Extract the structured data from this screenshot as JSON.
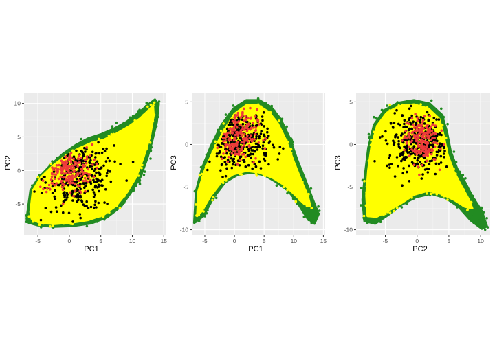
{
  "colors": {
    "panel_background": "#ebebeb",
    "grid": "#ffffff",
    "group_green": "#228b22",
    "group_yellow": "#ffff00",
    "group_black": "#000000",
    "group_red": "#ee3b3b"
  },
  "chart_data": [
    {
      "type": "scatter",
      "title": "",
      "xlabel": "PC1",
      "ylabel": "PC2",
      "xlim": [
        -7.2,
        15.3
      ],
      "ylim": [
        -9.6,
        11.5
      ],
      "xticks": [
        -5,
        0,
        5,
        10,
        15
      ],
      "xtick_labels": [
        "-5",
        "0",
        "5",
        "10",
        "15"
      ],
      "yticks": [
        -5,
        0,
        5,
        10
      ],
      "ytick_labels": [
        "-5",
        "0",
        "5",
        "10"
      ],
      "grid": true,
      "legend": "none",
      "series": [
        {
          "color": "#228b22",
          "region_outline": [
            [
              -6.8,
              -7.2
            ],
            [
              -6.2,
              -3
            ],
            [
              -5,
              -1.2
            ],
            [
              -3,
              0.8
            ],
            [
              -1,
              2.5
            ],
            [
              1,
              3.8
            ],
            [
              3,
              4.8
            ],
            [
              5,
              5.4
            ],
            [
              7,
              6.2
            ],
            [
              9,
              7.2
            ],
            [
              11,
              8.6
            ],
            [
              12.5,
              9.8
            ],
            [
              13.6,
              10.6
            ],
            [
              14.2,
              9.8
            ],
            [
              13.9,
              7.2
            ],
            [
              13.2,
              4.5
            ],
            [
              12.4,
              1.8
            ],
            [
              11.3,
              -1
            ],
            [
              10,
              -3
            ],
            [
              8.2,
              -5.4
            ],
            [
              6,
              -7
            ],
            [
              3.5,
              -7.9
            ],
            [
              0.5,
              -8.3
            ],
            [
              -2.5,
              -8.4
            ],
            [
              -5,
              -8.2
            ],
            [
              -6.5,
              -7.8
            ]
          ],
          "scatter_points": [
            [
              13.6,
              10.4
            ],
            [
              12.8,
              10
            ],
            [
              13.9,
              9
            ],
            [
              12.2,
              9.6
            ],
            [
              11.8,
              8.8
            ],
            [
              14.1,
              8
            ],
            [
              13.4,
              7.2
            ],
            [
              10.8,
              8.2
            ],
            [
              12.6,
              5.4
            ],
            [
              9.8,
              6.8
            ],
            [
              10.9,
              -0.8
            ],
            [
              11.8,
              0.6
            ],
            [
              9.6,
              -3.2
            ],
            [
              8.4,
              -5
            ],
            [
              -6.6,
              -7.4
            ],
            [
              -5.8,
              -7.9
            ],
            [
              -4.6,
              -8
            ],
            [
              -6.2,
              -5.2
            ],
            [
              -5.8,
              -3.4
            ],
            [
              12.9,
              3.2
            ]
          ]
        },
        {
          "color": "#ffff00",
          "region_outline": [
            [
              -6.2,
              -6.2
            ],
            [
              -5.8,
              -3
            ],
            [
              -4.5,
              -1
            ],
            [
              -2.5,
              0.8
            ],
            [
              -0.5,
              2.2
            ],
            [
              1.5,
              3.3
            ],
            [
              3.5,
              4.1
            ],
            [
              5.5,
              4.6
            ],
            [
              7.5,
              5.5
            ],
            [
              9.5,
              6.6
            ],
            [
              11.3,
              7.8
            ],
            [
              12.6,
              9
            ],
            [
              13.3,
              9.6
            ],
            [
              13.4,
              8.2
            ],
            [
              12.8,
              5
            ],
            [
              11.8,
              2
            ],
            [
              10.6,
              -1
            ],
            [
              9.2,
              -3.2
            ],
            [
              7.5,
              -5.2
            ],
            [
              5.5,
              -6.6
            ],
            [
              3,
              -7.4
            ],
            [
              0.3,
              -7.8
            ],
            [
              -2.5,
              -8
            ],
            [
              -4.8,
              -7.8
            ],
            [
              -6,
              -7.2
            ]
          ]
        },
        {
          "color": "#000000",
          "cluster": {
            "cx": 1.6,
            "cy": -0.8,
            "rx": 5.4,
            "ry": 5.2,
            "n": 300
          }
        },
        {
          "color": "#ee3b3b",
          "cluster": {
            "cx": -0.6,
            "cy": 0.2,
            "rx": 4.2,
            "ry": 3.6,
            "n": 190
          }
        }
      ]
    },
    {
      "type": "scatter",
      "title": "",
      "xlabel": "PC1",
      "ylabel": "PC3",
      "xlim": [
        -7.2,
        15.3
      ],
      "ylim": [
        -10.6,
        6.0
      ],
      "xticks": [
        -5,
        0,
        5,
        10,
        15
      ],
      "xtick_labels": [
        "-5",
        "0",
        "5",
        "10",
        "15"
      ],
      "yticks": [
        -10,
        -5,
        0,
        5
      ],
      "ytick_labels": [
        "-10",
        "-5",
        "0",
        "5"
      ],
      "grid": true,
      "legend": "none",
      "series": [
        {
          "color": "#228b22",
          "region_outline": [
            [
              -6.8,
              -9.2
            ],
            [
              -6.5,
              -5.5
            ],
            [
              -5.5,
              -2.8
            ],
            [
              -4,
              -0.2
            ],
            [
              -2.2,
              2.3
            ],
            [
              -0.2,
              4.2
            ],
            [
              2,
              5.2
            ],
            [
              4.2,
              5.2
            ],
            [
              6.2,
              4.4
            ],
            [
              7.8,
              3
            ],
            [
              9.3,
              0.8
            ],
            [
              10.6,
              -1.8
            ],
            [
              12,
              -4.2
            ],
            [
              13.2,
              -6.4
            ],
            [
              14.2,
              -8.2
            ],
            [
              13.5,
              -9.3
            ],
            [
              12.2,
              -8.6
            ],
            [
              10.6,
              -6.8
            ],
            [
              9,
              -5.4
            ],
            [
              7,
              -4.4
            ],
            [
              5,
              -3.6
            ],
            [
              2.8,
              -3.3
            ],
            [
              0.5,
              -3.6
            ],
            [
              -1.5,
              -4.4
            ],
            [
              -3.5,
              -6.2
            ],
            [
              -5.2,
              -8.4
            ]
          ],
          "scatter_points": [
            [
              13.6,
              -9
            ],
            [
              12.8,
              -8.6
            ],
            [
              14,
              -8
            ],
            [
              11.9,
              -7.6
            ],
            [
              10.8,
              -6.4
            ],
            [
              13.2,
              -7.2
            ],
            [
              10.2,
              -5.8
            ],
            [
              12.4,
              -5.6
            ],
            [
              -6.6,
              -9.1
            ],
            [
              -6.2,
              -8.4
            ],
            [
              -6.5,
              -6.8
            ],
            [
              -5.6,
              -8.1
            ],
            [
              -4.2,
              -6.2
            ],
            [
              -6.1,
              -5.6
            ],
            [
              9.6,
              -5.1
            ],
            [
              8.8,
              -4.9
            ]
          ]
        },
        {
          "color": "#ffff00",
          "region_outline": [
            [
              -6.3,
              -8.4
            ],
            [
              -6.1,
              -5.5
            ],
            [
              -5,
              -3
            ],
            [
              -3.6,
              -0.8
            ],
            [
              -1.8,
              1.6
            ],
            [
              0,
              3.6
            ],
            [
              2,
              4.6
            ],
            [
              4,
              4.6
            ],
            [
              5.8,
              3.8
            ],
            [
              7.3,
              2.5
            ],
            [
              8.7,
              0.5
            ],
            [
              10,
              -2
            ],
            [
              11.3,
              -4.3
            ],
            [
              12.4,
              -6.1
            ],
            [
              12.8,
              -7.2
            ],
            [
              11.8,
              -7
            ],
            [
              10.2,
              -5.9
            ],
            [
              8.5,
              -4.8
            ],
            [
              6.4,
              -3.9
            ],
            [
              4.2,
              -3.3
            ],
            [
              2,
              -3.1
            ],
            [
              -0.2,
              -3.5
            ],
            [
              -2.2,
              -4.4
            ],
            [
              -4,
              -6
            ],
            [
              -5.5,
              -7.8
            ]
          ]
        },
        {
          "color": "#000000",
          "cluster": {
            "cx": 0.8,
            "cy": 0.3,
            "rx": 5.0,
            "ry": 3.8,
            "n": 320
          }
        },
        {
          "color": "#ee3b3b",
          "cluster": {
            "cx": 0.4,
            "cy": 1.1,
            "rx": 3.4,
            "ry": 3.0,
            "n": 180
          }
        }
      ]
    },
    {
      "type": "scatter",
      "title": "",
      "xlabel": "PC2",
      "ylabel": "PC3",
      "xlim": [
        -9.6,
        11.5
      ],
      "ylim": [
        -10.6,
        6.0
      ],
      "xticks": [
        -5,
        0,
        5,
        10
      ],
      "xtick_labels": [
        "-5",
        "0",
        "5",
        "10"
      ],
      "yticks": [
        -10,
        -5,
        0,
        5
      ],
      "ytick_labels": [
        "-10",
        "-5",
        "0",
        "5"
      ],
      "grid": true,
      "legend": "none",
      "series": [
        {
          "color": "#228b22",
          "region_outline": [
            [
              -8.3,
              -9
            ],
            [
              -8.6,
              -6.5
            ],
            [
              -8.2,
              -3.5
            ],
            [
              -7.7,
              -0.4
            ],
            [
              -6.8,
              2.3
            ],
            [
              -5.2,
              4
            ],
            [
              -3,
              4.9
            ],
            [
              -0.5,
              5.2
            ],
            [
              2,
              4.8
            ],
            [
              3.9,
              3.5
            ],
            [
              4.7,
              1.5
            ],
            [
              5.3,
              -0.8
            ],
            [
              6.3,
              -2.8
            ],
            [
              7.6,
              -4.5
            ],
            [
              8.8,
              -6.2
            ],
            [
              10.2,
              -7.8
            ],
            [
              11,
              -9.6
            ],
            [
              10.2,
              -9.9
            ],
            [
              8.4,
              -8.9
            ],
            [
              6.5,
              -7.3
            ],
            [
              4.5,
              -6.3
            ],
            [
              2.2,
              -5.8
            ],
            [
              -0.2,
              -6.2
            ],
            [
              -2.5,
              -7.1
            ],
            [
              -4.6,
              -8.3
            ],
            [
              -6.6,
              -9.3
            ]
          ],
          "scatter_points": [
            [
              10.6,
              -9.7
            ],
            [
              9.8,
              -8.9
            ],
            [
              10.4,
              -8.6
            ],
            [
              8.9,
              -8.2
            ],
            [
              9.4,
              -7.2
            ],
            [
              8.2,
              -7.6
            ],
            [
              7.6,
              -6.2
            ],
            [
              -8.4,
              -8.6
            ],
            [
              -8.1,
              -7.1
            ],
            [
              -7.8,
              -9.2
            ],
            [
              -7.6,
              1.2
            ],
            [
              -6.8,
              3.2
            ],
            [
              -8.3,
              -4.8
            ],
            [
              -7.9,
              -2.6
            ],
            [
              4.8,
              2.4
            ],
            [
              3.8,
              4.2
            ],
            [
              6.8,
              -5.2
            ],
            [
              7.2,
              -3.6
            ]
          ]
        },
        {
          "color": "#ffff00",
          "region_outline": [
            [
              -7.8,
              -8.4
            ],
            [
              -8,
              -6
            ],
            [
              -7.7,
              -3
            ],
            [
              -7.2,
              -0.3
            ],
            [
              -6.3,
              2.2
            ],
            [
              -4.8,
              3.7
            ],
            [
              -2.8,
              4.5
            ],
            [
              -0.5,
              4.7
            ],
            [
              1.8,
              4.2
            ],
            [
              3.5,
              3
            ],
            [
              4.2,
              1
            ],
            [
              4.8,
              -1.2
            ],
            [
              5.8,
              -3.2
            ],
            [
              7,
              -4.9
            ],
            [
              8.1,
              -6.4
            ],
            [
              8.7,
              -7.5
            ],
            [
              7.5,
              -7.3
            ],
            [
              5.8,
              -6.5
            ],
            [
              3.8,
              -5.8
            ],
            [
              1.8,
              -5.4
            ],
            [
              -0.5,
              -5.9
            ],
            [
              -2.5,
              -6.9
            ],
            [
              -4.6,
              -7.8
            ],
            [
              -6.4,
              -8.5
            ]
          ]
        },
        {
          "color": "#000000",
          "cluster": {
            "cx": 0.3,
            "cy": 0.3,
            "rx": 5.0,
            "ry": 3.4,
            "n": 320
          }
        },
        {
          "color": "#ee3b3b",
          "cluster": {
            "cx": 0.6,
            "cy": 0.6,
            "rx": 2.6,
            "ry": 2.8,
            "n": 190
          }
        }
      ]
    }
  ]
}
